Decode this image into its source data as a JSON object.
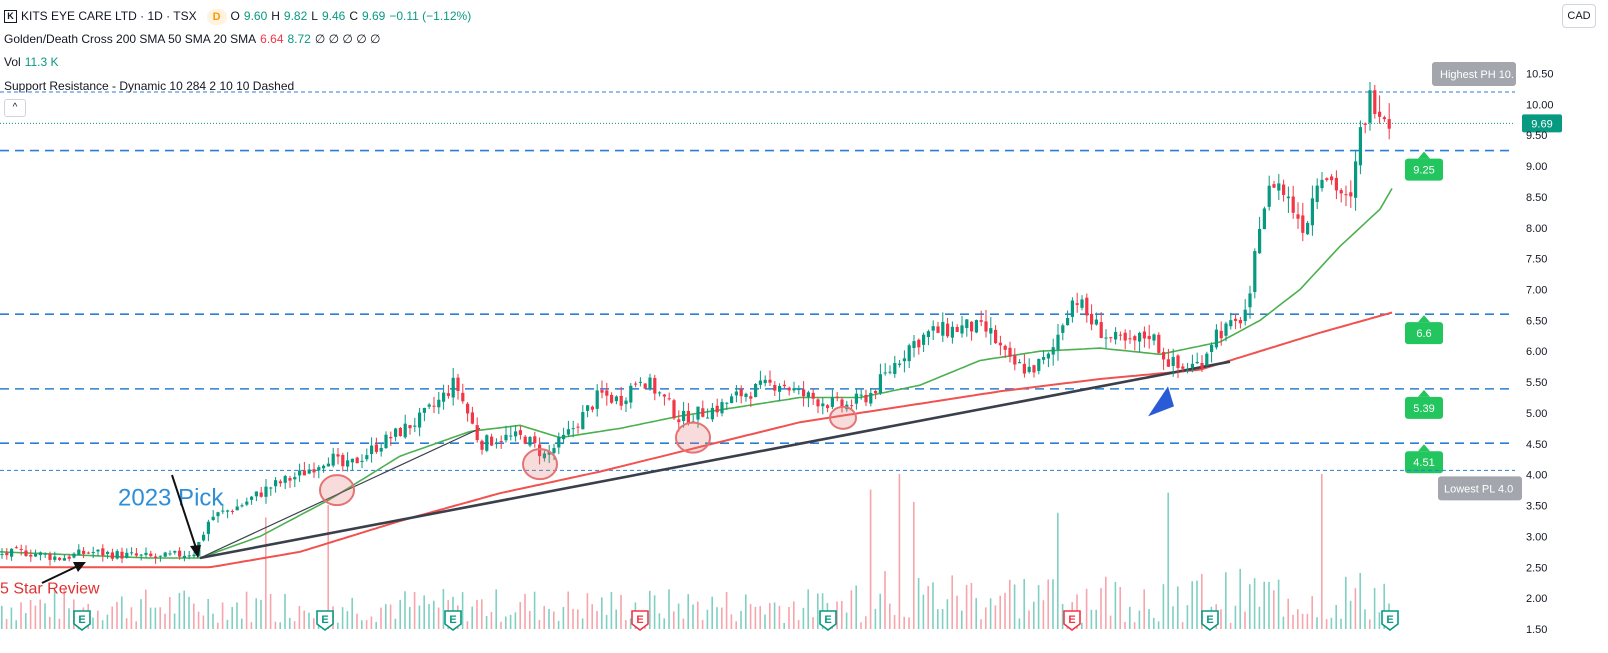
{
  "header": {
    "symbol_line": "KITS EYE CARE LTD · 1D · TSX",
    "interval_badge": "D",
    "o_label": "O",
    "o_value": "9.60",
    "h_label": "H",
    "h_value": "9.82",
    "l_label": "L",
    "l_value": "9.46",
    "c_label": "C",
    "c_value": "9.69",
    "change": "−0.11 (−1.12%)",
    "ma_label": "Golden/Death Cross 200 SMA 50 SMA 20 SMA",
    "ma_value_1": "6.64",
    "ma_value_2": "8.72",
    "ma_rest": "∅ ∅ ∅ ∅ ∅",
    "vol_label": "Vol",
    "vol_value": "11.3 K",
    "sr_label": "Support Resistance - Dynamic 10 284 2 10 10 Dashed",
    "currency": "CAD",
    "collapse_glyph": "^",
    "logo_glyph": "K"
  },
  "colors": {
    "up": "#089981",
    "down": "#f23645",
    "sma50": "#4caf50",
    "sma200": "#f0524f",
    "level": "#2a7fd4",
    "trend": "#3a3f4b",
    "label_green": "#22c55e",
    "label_gray": "#a3a6ad",
    "annotation_blue": "#2e8fd8",
    "annotation_red": "#e03131",
    "arrow_blue": "#2a5bd7",
    "circle": "#e57373"
  },
  "chart_data": {
    "type": "candlestick",
    "y_axis": {
      "min": 1.5,
      "max": 10.75,
      "ticks": [
        "10.50",
        "10.00",
        "9.50",
        "9.00",
        "8.50",
        "8.00",
        "7.50",
        "7.00",
        "6.50",
        "6.00",
        "5.50",
        "5.00",
        "4.50",
        "4.00",
        "3.50",
        "3.00",
        "2.50",
        "2.00",
        "1.50"
      ],
      "tick_values": [
        10.5,
        10,
        9.5,
        9,
        8.5,
        8,
        7.5,
        7,
        6.5,
        6,
        5.5,
        5,
        4.5,
        4,
        3.5,
        3,
        2.5,
        2,
        1.5
      ]
    },
    "last_price": "9.69",
    "last_price_value": 9.69,
    "close_anchors": [
      [
        0,
        2.7
      ],
      [
        25,
        2.75
      ],
      [
        60,
        2.65
      ],
      [
        90,
        2.75
      ],
      [
        120,
        2.7
      ],
      [
        160,
        2.65
      ],
      [
        195,
        2.75
      ],
      [
        210,
        3.3
      ],
      [
        240,
        3.5
      ],
      [
        270,
        3.8
      ],
      [
        300,
        4.0
      ],
      [
        330,
        4.3
      ],
      [
        345,
        4.1
      ],
      [
        380,
        4.5
      ],
      [
        420,
        4.9
      ],
      [
        440,
        5.2
      ],
      [
        455,
        5.5
      ],
      [
        470,
        4.9
      ],
      [
        480,
        4.5
      ],
      [
        500,
        4.6
      ],
      [
        525,
        4.6
      ],
      [
        545,
        4.3
      ],
      [
        565,
        4.6
      ],
      [
        580,
        4.9
      ],
      [
        600,
        5.3
      ],
      [
        620,
        5.2
      ],
      [
        640,
        5.6
      ],
      [
        660,
        5.3
      ],
      [
        680,
        4.9
      ],
      [
        700,
        5.0
      ],
      [
        720,
        5.1
      ],
      [
        740,
        5.3
      ],
      [
        760,
        5.4
      ],
      [
        780,
        5.5
      ],
      [
        800,
        5.3
      ],
      [
        820,
        5.2
      ],
      [
        845,
        5.1
      ],
      [
        870,
        5.3
      ],
      [
        890,
        5.7
      ],
      [
        910,
        6.1
      ],
      [
        930,
        6.3
      ],
      [
        950,
        6.35
      ],
      [
        970,
        6.4
      ],
      [
        990,
        6.3
      ],
      [
        1010,
        5.8
      ],
      [
        1030,
        5.7
      ],
      [
        1050,
        5.9
      ],
      [
        1065,
        6.6
      ],
      [
        1075,
        6.9
      ],
      [
        1090,
        6.5
      ],
      [
        1110,
        6.2
      ],
      [
        1130,
        6.1
      ],
      [
        1150,
        6.3
      ],
      [
        1165,
        5.9
      ],
      [
        1180,
        5.7
      ],
      [
        1200,
        5.8
      ],
      [
        1215,
        6.3
      ],
      [
        1235,
        6.4
      ],
      [
        1250,
        6.8
      ],
      [
        1260,
        8.2
      ],
      [
        1275,
        8.8
      ],
      [
        1290,
        8.4
      ],
      [
        1305,
        8.0
      ],
      [
        1320,
        9.0
      ],
      [
        1340,
        8.6
      ],
      [
        1350,
        8.3
      ],
      [
        1360,
        9.5
      ],
      [
        1370,
        10.1
      ],
      [
        1380,
        10.0
      ],
      [
        1390,
        9.7
      ]
    ],
    "sma50_anchors": [
      [
        0,
        2.75
      ],
      [
        150,
        2.65
      ],
      [
        200,
        2.65
      ],
      [
        260,
        3.0
      ],
      [
        330,
        3.6
      ],
      [
        400,
        4.3
      ],
      [
        470,
        4.7
      ],
      [
        520,
        4.8
      ],
      [
        560,
        4.6
      ],
      [
        620,
        4.75
      ],
      [
        680,
        4.95
      ],
      [
        740,
        5.1
      ],
      [
        800,
        5.25
      ],
      [
        860,
        5.25
      ],
      [
        920,
        5.45
      ],
      [
        980,
        5.85
      ],
      [
        1040,
        6.0
      ],
      [
        1100,
        6.05
      ],
      [
        1160,
        5.95
      ],
      [
        1220,
        6.15
      ],
      [
        1260,
        6.5
      ],
      [
        1300,
        7.0
      ],
      [
        1340,
        7.7
      ],
      [
        1380,
        8.3
      ],
      [
        1395,
        8.72
      ]
    ],
    "sma200_anchors": [
      [
        0,
        2.5
      ],
      [
        100,
        2.5
      ],
      [
        210,
        2.5
      ],
      [
        300,
        2.75
      ],
      [
        400,
        3.25
      ],
      [
        500,
        3.7
      ],
      [
        600,
        4.05
      ],
      [
        700,
        4.45
      ],
      [
        800,
        4.85
      ],
      [
        900,
        5.1
      ],
      [
        1000,
        5.35
      ],
      [
        1100,
        5.55
      ],
      [
        1200,
        5.7
      ],
      [
        1260,
        6.0
      ],
      [
        1320,
        6.3
      ],
      [
        1395,
        6.64
      ]
    ],
    "sr_levels": [
      {
        "label": "9.25",
        "value": 9.25,
        "style": "green"
      },
      {
        "label": "6.6",
        "value": 6.6,
        "style": "green"
      },
      {
        "label": "5.39",
        "value": 5.39,
        "style": "green"
      },
      {
        "label": "4.51",
        "value": 4.51,
        "style": "green"
      }
    ],
    "extreme_levels": [
      {
        "label": "Highest PH 10.",
        "value": 10.2
      },
      {
        "label": "Lowest PL 4.0",
        "value": 4.07
      }
    ],
    "trendlines": [
      {
        "from": [
          200,
          2.65
        ],
        "to": [
          1230,
          5.83
        ]
      },
      {
        "from": [
          200,
          2.65
        ],
        "to": [
          480,
          4.75
        ]
      }
    ],
    "touch_circles": [
      [
        337,
        3.75
      ],
      [
        540,
        4.17
      ],
      [
        693,
        4.6
      ],
      [
        843,
        4.92
      ]
    ],
    "earnings_x": [
      82,
      325,
      453,
      640,
      828,
      1072,
      1210,
      1390
    ],
    "earnings_glyph": "E",
    "earnings_down_x": [
      640,
      1072
    ],
    "volume_spikes": [
      [
        265,
        0.72
      ],
      [
        330,
        0.8
      ],
      [
        872,
        0.9
      ],
      [
        898,
        1.0
      ],
      [
        913,
        0.82
      ],
      [
        1170,
        0.88
      ],
      [
        1320,
        1.0
      ],
      [
        1058,
        0.75
      ]
    ],
    "annotations": [
      {
        "text": "2023 Pick",
        "price": 3.63,
        "x": 118
      },
      {
        "text": "5 Star Review",
        "price": 2.17,
        "x": 0
      }
    ],
    "arrow_pointer": {
      "x": 1162,
      "price": 5.3
    }
  }
}
